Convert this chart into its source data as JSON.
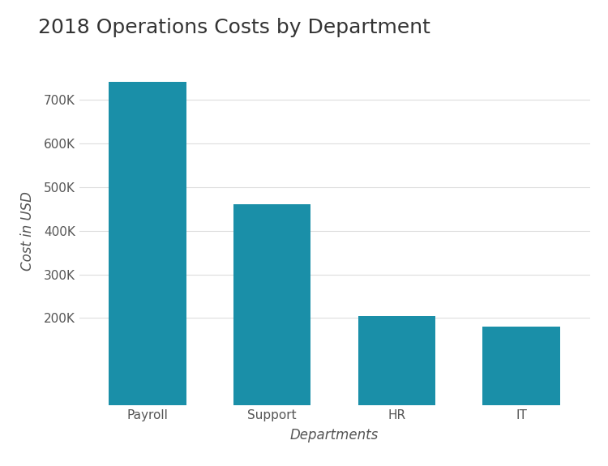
{
  "title": "2018 Operations Costs by Department",
  "categories": [
    "Payroll",
    "Support",
    "HR",
    "IT"
  ],
  "values": [
    740000,
    460000,
    205000,
    180000
  ],
  "bar_color": "#1a8fa8",
  "xlabel": "Departments",
  "ylabel": "Cost in USD",
  "ylim": [
    0,
    800000
  ],
  "yticks": [
    200000,
    300000,
    400000,
    500000,
    600000,
    700000
  ],
  "ytick_labels": [
    "200K",
    "300K",
    "400K",
    "500K",
    "600K",
    "700K"
  ],
  "background_color": "#ffffff",
  "title_fontsize": 18,
  "axis_label_fontsize": 12,
  "tick_fontsize": 11,
  "bar_width": 0.62
}
